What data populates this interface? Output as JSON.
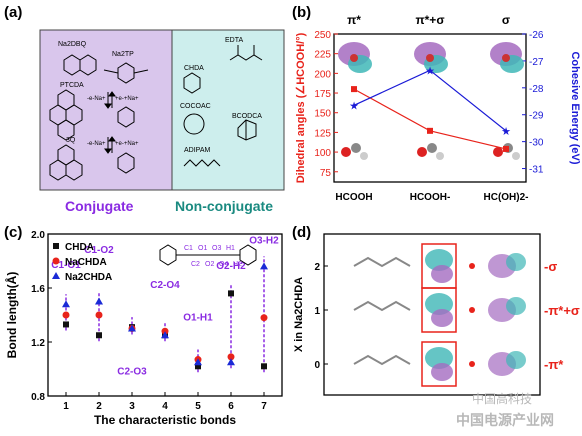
{
  "panel_a": {
    "label": "(a)",
    "conjugate_title": "Conjugate",
    "nonconjugate_title": "Non-conjugate",
    "conj_colors": {
      "fill": "#d9c6ec",
      "title": "#8a2be2"
    },
    "nonconj_colors": {
      "fill": "#cdeeed",
      "title": "#1a8a80"
    },
    "conjugate_molecules": [
      "Na2DBQ",
      "Na2TP",
      "PTCDA",
      "3Q"
    ],
    "nonconjugate_molecules": [
      "EDTA",
      "CHDA",
      "COCOAC",
      "BCODCA",
      "ADIPAM"
    ],
    "reaction_labels": [
      "-e-Na+",
      "+e-+Na+",
      "-e-Na+",
      "+e-+Na+"
    ]
  },
  "panel_b": {
    "label": "(b)",
    "chart_data": {
      "type": "line",
      "categories": [
        "HCOOH",
        "HCOOH-",
        "HC(OH)2-"
      ],
      "top_labels": [
        "π*",
        "π*+σ",
        "σ"
      ],
      "ylabel_left": "Dihedral angles (∠HCOOH/°)",
      "ylabel_right": "Cohesive Energy (eV)",
      "ylim_left": [
        62,
        250
      ],
      "yticks_left": [
        75,
        100,
        125,
        150,
        175,
        200,
        225,
        250
      ],
      "ylim_right": [
        -31.5,
        -26
      ],
      "yticks_right": [
        -31,
        -30,
        -29,
        -28,
        -27,
        -26
      ],
      "series": [
        {
          "axis": "left",
          "values": [
            180,
            127,
            104
          ],
          "color": "#e8231b"
        },
        {
          "axis": "right",
          "values": [
            -28.65,
            -27.35,
            -29.6
          ],
          "color": "#1a1ad6"
        }
      ]
    }
  },
  "panel_c": {
    "label": "(c)",
    "chart_data": {
      "type": "scatter",
      "xlabel": "The characteristic bonds",
      "ylabel": "Bond length(Å)",
      "x": [
        1,
        2,
        3,
        4,
        5,
        6,
        7
      ],
      "ylim": [
        0.8,
        2.0
      ],
      "yticks": [
        0.8,
        1.2,
        1.6,
        2.0
      ],
      "series": [
        {
          "name": "CHDA",
          "marker": "square",
          "color": "#111111",
          "values": [
            1.33,
            1.25,
            1.31,
            1.25,
            1.02,
            1.56,
            1.02
          ]
        },
        {
          "name": "NaCHDA",
          "marker": "circle",
          "color": "#e8231b",
          "values": [
            1.4,
            1.4,
            1.3,
            1.28,
            1.07,
            1.09,
            1.38
          ]
        },
        {
          "name": "Na2CHDA",
          "marker": "triangle",
          "color": "#1a2ad6",
          "values": [
            1.48,
            1.5,
            1.3,
            1.25,
            1.05,
            1.05,
            1.76
          ]
        }
      ],
      "annotations": [
        "C1-O1",
        "C1-O2",
        "C2-O3",
        "C2-O4",
        "O1-H1",
        "O2-H2",
        "O3-H2"
      ],
      "annotation_color": "#8a2be2",
      "structure_labels": [
        "C1",
        "C2",
        "O1",
        "O2",
        "O3",
        "O4",
        "H1",
        "H2"
      ]
    }
  },
  "panel_d": {
    "label": "(d)",
    "ylabel": "X in Na2CHDA",
    "yticks": [
      "2",
      "1",
      "0"
    ],
    "orbital_labels": [
      "-σ",
      "-π*+σ",
      "-π*"
    ],
    "label_color": "#e8231b"
  },
  "watermark": {
    "line1": "中国高科技",
    "line2": "中国电源产业网"
  }
}
